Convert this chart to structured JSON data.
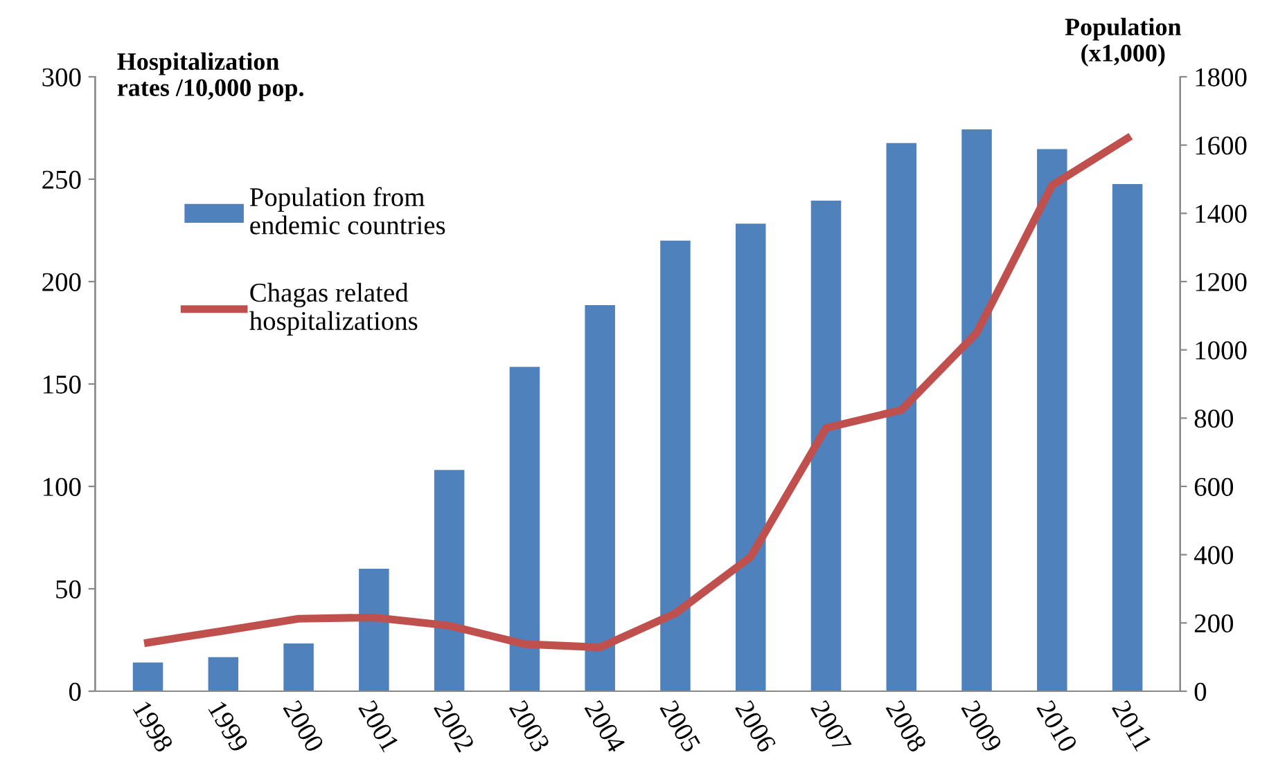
{
  "chart_data": {
    "type": "bar",
    "ylabel": "Hospitalization\nrates /10,000 pop.",
    "y2label": "Population\n(x1,000)",
    "categories": [
      "1998",
      "1999",
      "2000",
      "2001",
      "2002",
      "2003",
      "2004",
      "2005",
      "2006",
      "2007",
      "2008",
      "2009",
      "2010",
      "2011"
    ],
    "series": [
      {
        "name": "Population from\nendemic countries",
        "axis": "y2",
        "color": "#4f81bd",
        "values": [
          84,
          100,
          140,
          359,
          648,
          950,
          1131,
          1320,
          1370,
          1437,
          1606,
          1646,
          1588,
          1486
        ]
      },
      {
        "name": "Chagas related\nhospitalizations",
        "type": "line",
        "axis": "y",
        "color": "#c0504d",
        "values": [
          23.7,
          29.5,
          35.4,
          36,
          32,
          23,
          21.4,
          38,
          65.6,
          128.5,
          137.3,
          175,
          247,
          270
        ]
      }
    ],
    "ylim": [
      0,
      300
    ],
    "yticks": [
      0,
      50,
      100,
      150,
      200,
      250,
      300
    ],
    "y2lim": [
      0,
      1800
    ],
    "y2ticks": [
      0,
      200,
      400,
      600,
      800,
      1000,
      1200,
      1400,
      1600,
      1800
    ],
    "grid": false,
    "legend": "top left",
    "marker": "none",
    "line_style": "solid"
  }
}
